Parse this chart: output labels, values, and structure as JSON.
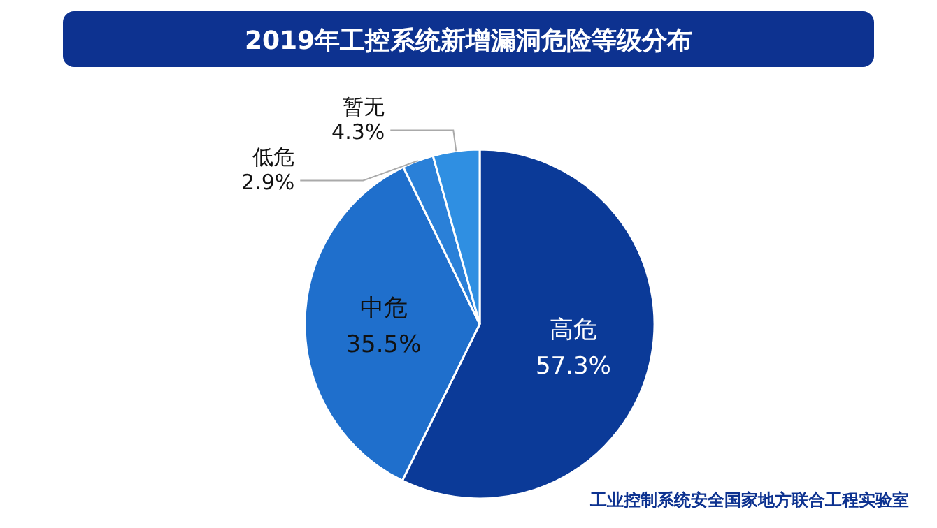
{
  "chart_data": {
    "type": "pie",
    "title": "2019年工控系统新增漏洞危险等级分布",
    "categories": [
      "高危",
      "中危",
      "低危",
      "暂无"
    ],
    "values": [
      57.3,
      35.5,
      2.9,
      4.3
    ],
    "value_labels": [
      "57.3%",
      "35.5%",
      "2.9%",
      "4.3%"
    ],
    "colors": [
      "#0b3a98",
      "#1f6fcc",
      "#2a80d8",
      "#2f8fe2"
    ],
    "annotations": [
      "工业控制系统安全国家地方联合工程实验室"
    ]
  }
}
